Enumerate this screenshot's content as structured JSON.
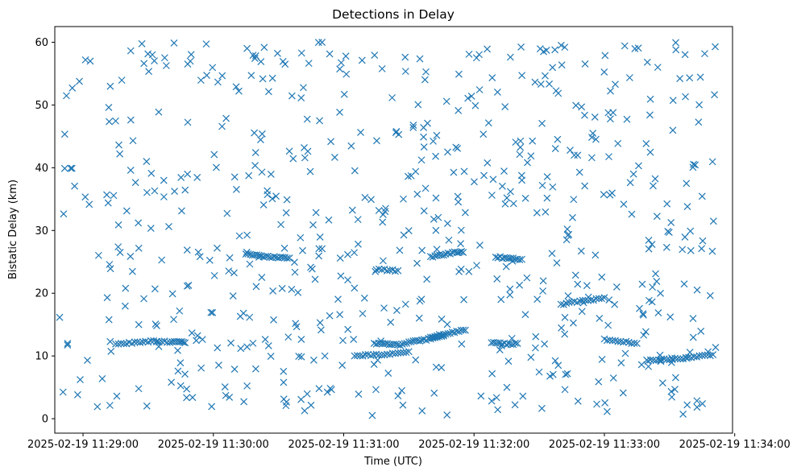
{
  "chart_data": {
    "type": "scatter",
    "title": "Detections in Delay",
    "xlabel": "Time (UTC)",
    "ylabel": "Bistatic Delay (km)",
    "marker": "x",
    "color": "#1f77b4",
    "grid": false,
    "legend": "none",
    "x_is_time": true,
    "xlim": [
      "2025-02-19 11:28:47",
      "2025-02-19 11:33:59"
    ],
    "ylim": [
      -2.3,
      62.5
    ],
    "xticks": [
      "2025-02-19 11:29:00",
      "2025-02-19 11:30:00",
      "2025-02-19 11:31:00",
      "2025-02-19 11:32:00",
      "2025-02-19 11:33:00",
      "2025-02-19 11:34:00"
    ],
    "yticks": [
      0,
      10,
      20,
      30,
      40,
      50,
      60
    ],
    "tracks": [
      {
        "name": "track1",
        "points": [
          [
            "11:29:15",
            11.8
          ],
          [
            "11:29:20",
            12.0
          ],
          [
            "11:29:25",
            12.2
          ],
          [
            "11:29:30",
            12.3
          ],
          [
            "11:29:35",
            12.3
          ],
          [
            "11:29:40",
            12.2
          ],
          [
            "11:29:44",
            12.2
          ],
          [
            "11:29:47",
            12.1
          ]
        ]
      },
      {
        "name": "track2",
        "points": [
          [
            "11:30:15",
            26.2
          ],
          [
            "11:30:19",
            26.1
          ],
          [
            "11:30:23",
            25.9
          ],
          [
            "11:30:27",
            25.8
          ],
          [
            "11:30:31",
            25.7
          ],
          [
            "11:30:35",
            25.6
          ]
        ]
      },
      {
        "name": "track3",
        "points": [
          [
            "11:31:14",
            12.0
          ],
          [
            "11:31:18",
            11.9
          ],
          [
            "11:31:22",
            11.8
          ],
          [
            "11:31:26",
            11.8
          ],
          [
            "11:31:30",
            12.2
          ],
          [
            "11:31:34",
            12.4
          ],
          [
            "11:31:38",
            12.6
          ],
          [
            "11:31:42",
            12.9
          ],
          [
            "11:31:46",
            13.2
          ]
        ]
      },
      {
        "name": "track4",
        "points": [
          [
            "11:31:40",
            25.8
          ],
          [
            "11:31:44",
            26.0
          ],
          [
            "11:31:48",
            26.3
          ],
          [
            "11:31:52",
            26.6
          ],
          [
            "11:31:55",
            26.5
          ]
        ]
      },
      {
        "name": "track5",
        "points": [
          [
            "11:32:10",
            25.8
          ],
          [
            "11:32:14",
            25.6
          ],
          [
            "11:32:18",
            25.5
          ],
          [
            "11:32:22",
            25.4
          ]
        ]
      },
      {
        "name": "track6",
        "points": [
          [
            "11:32:08",
            12.2
          ],
          [
            "11:32:12",
            12.0
          ],
          [
            "11:32:16",
            11.9
          ],
          [
            "11:32:20",
            12.0
          ]
        ]
      },
      {
        "name": "track7",
        "points": [
          [
            "11:32:40",
            18.2
          ],
          [
            "11:32:45",
            18.5
          ],
          [
            "11:32:50",
            18.8
          ],
          [
            "11:32:55",
            19.0
          ],
          [
            "11:33:00",
            19.3
          ]
        ]
      },
      {
        "name": "track8",
        "points": [
          [
            "11:33:00",
            12.6
          ],
          [
            "11:33:05",
            12.4
          ],
          [
            "11:33:10",
            12.2
          ],
          [
            "11:33:15",
            12.0
          ]
        ]
      },
      {
        "name": "track9",
        "points": [
          [
            "11:33:20",
            9.3
          ],
          [
            "11:33:25",
            9.4
          ],
          [
            "11:33:30",
            9.5
          ],
          [
            "11:33:35",
            9.6
          ],
          [
            "11:33:40",
            9.8
          ],
          [
            "11:33:45",
            10.0
          ],
          [
            "11:33:50",
            10.2
          ]
        ]
      },
      {
        "name": "track10",
        "points": [
          [
            "11:31:05",
            10.0
          ],
          [
            "11:31:10",
            10.1
          ],
          [
            "11:31:15",
            10.2
          ],
          [
            "11:31:20",
            10.3
          ],
          [
            "11:31:25",
            10.5
          ],
          [
            "11:31:30",
            10.7
          ]
        ]
      },
      {
        "name": "track11",
        "points": [
          [
            "11:31:40",
            13.0
          ],
          [
            "11:31:44",
            13.3
          ],
          [
            "11:31:48",
            13.6
          ],
          [
            "11:31:52",
            13.9
          ],
          [
            "11:31:56",
            14.1
          ]
        ]
      },
      {
        "name": "track12",
        "points": [
          [
            "11:31:15",
            23.8
          ],
          [
            "11:31:20",
            23.7
          ],
          [
            "11:31:25",
            23.6
          ]
        ]
      }
    ],
    "clutter": {
      "x_start": "11:28:49",
      "x_end": "11:33:52",
      "y_min": 0.5,
      "y_max": 60,
      "count": 640
    }
  }
}
